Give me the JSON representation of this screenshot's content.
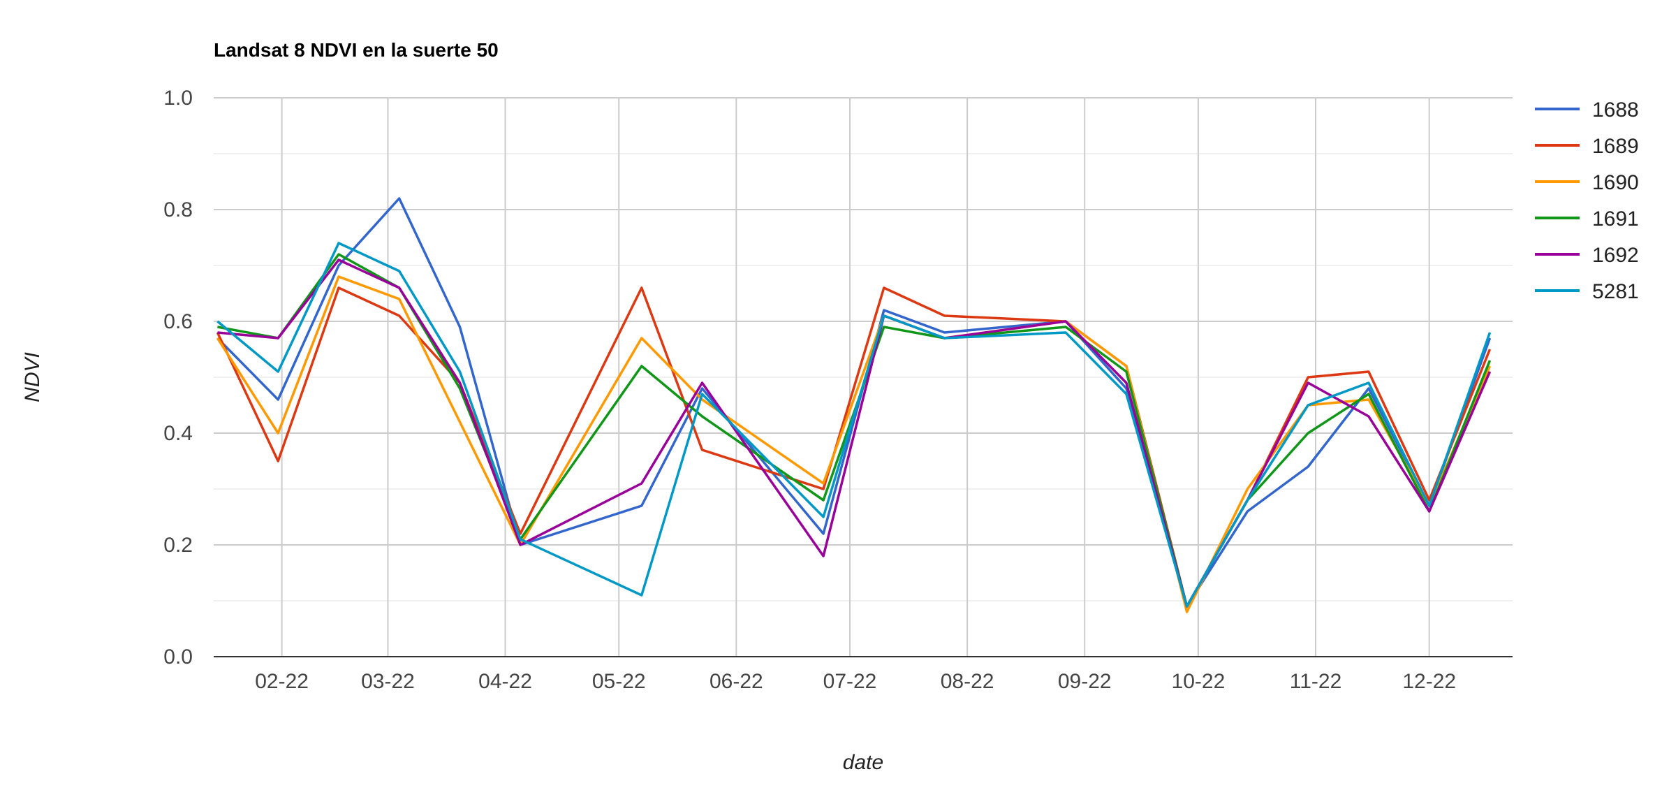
{
  "chart_data": {
    "type": "line",
    "title": "Landsat 8 NDVI en la suerte 50",
    "xlabel": "date",
    "ylabel": "NDVI",
    "ylim": [
      0,
      1.0
    ],
    "y_ticks": [
      "0.0",
      "0.2",
      "0.4",
      "0.6",
      "0.8",
      "1.0"
    ],
    "y_tick_values": [
      0,
      0.2,
      0.4,
      0.6,
      0.8,
      1.0
    ],
    "x_range": [
      "2022-01-14",
      "2022-12-23"
    ],
    "x_ticks": [
      "02-22",
      "03-22",
      "04-22",
      "05-22",
      "06-22",
      "07-22",
      "08-22",
      "09-22",
      "10-22",
      "11-22",
      "12-22"
    ],
    "x_tick_dates": [
      "2022-02-01",
      "2022-03-01",
      "2022-04-01",
      "2022-05-01",
      "2022-06-01",
      "2022-07-01",
      "2022-08-01",
      "2022-09-01",
      "2022-10-01",
      "2022-11-01",
      "2022-12-01"
    ],
    "grid": true,
    "legend_position": "right",
    "dates": [
      "2022-01-15",
      "2022-01-31",
      "2022-02-16",
      "2022-03-04",
      "2022-03-20",
      "2022-04-05",
      "2022-05-07",
      "2022-05-23",
      "2022-06-24",
      "2022-07-10",
      "2022-07-26",
      "2022-08-27",
      "2022-09-12",
      "2022-09-28",
      "2022-10-14",
      "2022-10-30",
      "2022-11-15",
      "2022-12-01",
      "2022-12-17"
    ],
    "series": [
      {
        "name": "1688",
        "color": "#3366cc",
        "values": [
          0.57,
          0.46,
          0.7,
          0.82,
          0.59,
          0.2,
          0.27,
          0.48,
          0.22,
          0.62,
          0.58,
          0.6,
          0.48,
          0.09,
          0.26,
          0.34,
          0.48,
          0.27,
          0.57
        ]
      },
      {
        "name": "1689",
        "color": "#dc3912",
        "values": [
          0.58,
          0.35,
          0.66,
          0.61,
          0.49,
          0.22,
          0.66,
          0.37,
          0.3,
          0.66,
          0.61,
          0.6,
          0.52,
          0.09,
          0.28,
          0.5,
          0.51,
          0.28,
          0.55
        ]
      },
      {
        "name": "1690",
        "color": "#ff9900",
        "values": [
          0.57,
          0.4,
          0.68,
          0.64,
          0.42,
          0.2,
          0.57,
          0.46,
          0.31,
          0.61,
          0.57,
          0.6,
          0.52,
          0.08,
          0.3,
          0.45,
          0.46,
          0.27,
          0.52
        ]
      },
      {
        "name": "1691",
        "color": "#109618",
        "values": [
          0.59,
          0.57,
          0.72,
          0.66,
          0.48,
          0.21,
          0.52,
          0.43,
          0.28,
          0.59,
          0.57,
          0.59,
          0.51,
          0.09,
          0.28,
          0.4,
          0.47,
          0.26,
          0.53
        ]
      },
      {
        "name": "1692",
        "color": "#990099",
        "values": [
          0.58,
          0.57,
          0.71,
          0.66,
          0.49,
          0.2,
          0.31,
          0.49,
          0.18,
          0.61,
          0.57,
          0.6,
          0.49,
          0.09,
          0.28,
          0.49,
          0.43,
          0.26,
          0.51
        ]
      },
      {
        "name": "5281",
        "color": "#0099c6",
        "values": [
          0.6,
          0.51,
          0.74,
          0.69,
          0.51,
          0.21,
          0.11,
          0.47,
          0.25,
          0.61,
          0.57,
          0.58,
          0.47,
          0.09,
          0.28,
          0.45,
          0.49,
          0.27,
          0.58
        ]
      }
    ]
  }
}
